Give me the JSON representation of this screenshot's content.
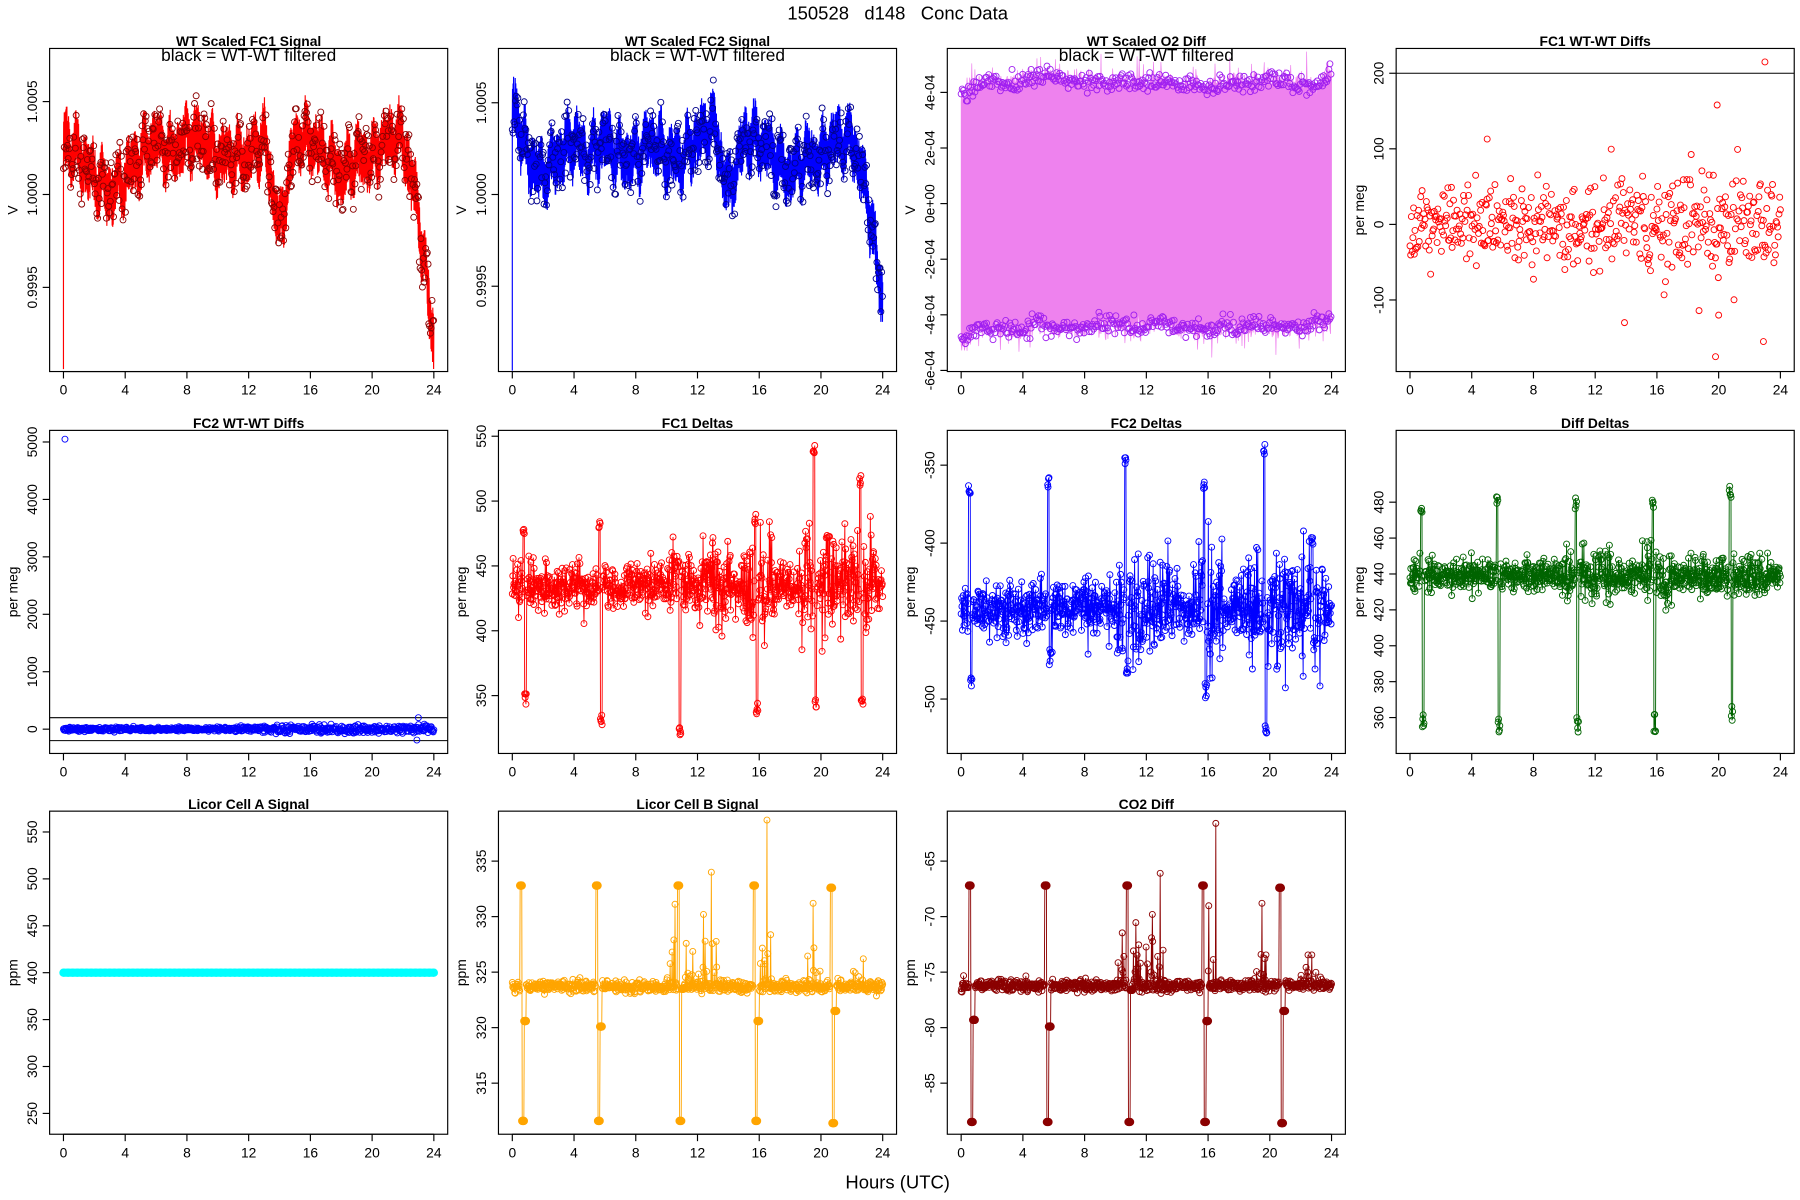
{
  "page": {
    "title": "150528   d148   Conc Data",
    "xlabel": "Hours (UTC)"
  },
  "chart_data": [
    {
      "type": "line",
      "style": "band",
      "title": "WT Scaled FC1 Signal",
      "subtitle": "black = WT-WT filtered",
      "ylabel": "V",
      "xlim": [
        0,
        24
      ],
      "ylim": [
        0.999047,
        1.000786
      ],
      "xticks": [
        0,
        4,
        8,
        12,
        16,
        20,
        24
      ],
      "yticks": [
        1.0005,
        1.0,
        0.9995
      ],
      "ytick_labels": [
        "1.0005",
        "1.0000",
        "0.9995"
      ],
      "color": "#FF0000",
      "point_color": "#8B0000",
      "baseline": [
        1.0003,
        1.0002,
        1.0001,
        1.0,
        1.0001,
        1.0002,
        1.0003,
        1.0002,
        1.0003,
        1.0003,
        1.0002,
        1.0002,
        1.0002,
        1.0003,
        0.9998,
        1.0003,
        1.0003,
        1.0002,
        1.0001,
        1.0002,
        1.0002,
        1.0003,
        1.0003,
        0.9999,
        0.9992
      ],
      "noise": 0.00016,
      "spike_start": {
        "x": 0,
        "y": 0.99906
      }
    },
    {
      "type": "line",
      "style": "band",
      "title": "WT Scaled FC2 Signal",
      "subtitle": "black = WT-WT filtered",
      "ylabel": "V",
      "xlim": [
        0,
        24
      ],
      "ylim": [
        0.999035,
        1.000796
      ],
      "xticks": [
        0,
        4,
        8,
        12,
        16,
        20,
        24
      ],
      "yticks": [
        1.0005,
        1.0,
        0.9995
      ],
      "ytick_labels": [
        "1.0005",
        "1.0000",
        "0.9995"
      ],
      "color": "#0000FF",
      "point_color": "#00008B",
      "baseline": [
        1.0005,
        1.0002,
        1.0001,
        1.0002,
        1.0003,
        1.0002,
        1.0003,
        1.0002,
        1.0002,
        1.0003,
        1.0002,
        1.0002,
        1.0003,
        1.0004,
        1.0,
        1.0003,
        1.0003,
        1.0002,
        1.0001,
        1.0002,
        1.0002,
        1.0003,
        1.0003,
        1.0,
        0.9994
      ],
      "noise": 0.00016,
      "spike_start": {
        "x": 0,
        "y": 0.99904
      }
    },
    {
      "type": "area",
      "style": "diffband",
      "title": "WT Scaled O2 Diff",
      "subtitle": "black = WT-WT filtered",
      "ylabel": "V",
      "xlim": [
        0,
        24
      ],
      "ylim": [
        -0.000604,
        0.000558
      ],
      "xticks": [
        0,
        4,
        8,
        12,
        16,
        20,
        24
      ],
      "yticks": [
        0.0004,
        0.0002,
        0,
        -0.0002,
        -0.0004,
        -0.0006
      ],
      "ytick_labels": [
        "4e-04",
        "2e-04",
        "0e+00",
        "-2e-04",
        "-4e-04",
        "-6e-04"
      ],
      "color": "#EE82EE",
      "point_color": "#A020F0",
      "upper": [
        0.00038,
        0.00043,
        0.00044,
        0.00043,
        0.00044,
        0.00045,
        0.00046,
        0.00043,
        0.00044,
        0.00043,
        0.00044,
        0.00044,
        0.00043,
        0.00044,
        0.00042,
        0.00043,
        0.00041,
        0.00043,
        0.00044,
        0.00043,
        0.00045,
        0.00044,
        0.00043,
        0.00042,
        0.00048
      ],
      "lower": [
        -0.0005,
        -0.00045,
        -0.00044,
        -0.00045,
        -0.00046,
        -0.00042,
        -0.00045,
        -0.00044,
        -0.00045,
        -0.00044,
        -0.00042,
        -0.00045,
        -0.00044,
        -0.00042,
        -0.00044,
        -0.00045,
        -0.00046,
        -0.00044,
        -0.00045,
        -0.00043,
        -0.00045,
        -0.00044,
        -0.00045,
        -0.00043,
        -0.00042
      ],
      "noise": 2e-05
    },
    {
      "type": "scatter",
      "style": "scatter",
      "title": "FC1 WT-WT Diffs",
      "ylabel": "per meg",
      "xlim": [
        0,
        24
      ],
      "ylim": [
        -194.7,
        232.8
      ],
      "xticks": [
        0,
        4,
        8,
        12,
        16,
        20,
        24
      ],
      "yticks": [
        200,
        100,
        0,
        -100
      ],
      "ytick_labels": [
        "200",
        "100",
        "0",
        "-100"
      ],
      "color": "#FF0000",
      "n": 520,
      "sd": [
        28,
        28,
        28,
        28,
        28,
        30,
        30,
        30,
        25,
        25,
        28,
        32,
        38,
        42,
        40,
        40,
        42,
        45,
        45,
        48,
        45,
        42,
        40,
        38,
        38
      ],
      "hlines": [
        200
      ],
      "outliers": [
        {
          "x": 23.0,
          "y": 215
        },
        {
          "x": 19.9,
          "y": 158
        },
        {
          "x": 5.0,
          "y": 113
        },
        {
          "x": 19.8,
          "y": -175
        },
        {
          "x": 22.9,
          "y": -155
        },
        {
          "x": 13.9,
          "y": -130
        },
        {
          "x": 20.0,
          "y": -120
        }
      ]
    },
    {
      "type": "scatter",
      "style": "scatter",
      "title": "FC2 WT-WT Diffs",
      "ylabel": "per meg",
      "xlim": [
        0,
        24
      ],
      "ylim": [
        -423,
        5202
      ],
      "xticks": [
        0,
        4,
        8,
        12,
        16,
        20,
        24
      ],
      "yticks": [
        0,
        1000,
        2000,
        3000,
        4000,
        5000
      ],
      "ytick_labels": [
        "0",
        "1000",
        "2000",
        "3000",
        "4000",
        "5000"
      ],
      "color": "#0000FF",
      "n": 700,
      "sd": [
        20,
        20,
        20,
        20,
        20,
        20,
        20,
        20,
        20,
        20,
        22,
        25,
        30,
        35,
        40,
        40,
        40,
        40,
        40,
        40,
        40,
        40,
        45,
        45,
        45
      ],
      "hlines": [
        200,
        -200
      ],
      "outliers": [
        {
          "x": 0.1,
          "y": 5050
        },
        {
          "x": 23.0,
          "y": 200
        },
        {
          "x": 22.9,
          "y": -190
        }
      ]
    },
    {
      "type": "line",
      "style": "spike",
      "title": "FC1 Deltas",
      "ylabel": "per meg",
      "xlim": [
        0,
        24
      ],
      "ylim": [
        305.4,
        554.5
      ],
      "xticks": [
        0,
        4,
        8,
        12,
        16,
        20,
        24
      ],
      "yticks": [
        350,
        400,
        450,
        500,
        550
      ],
      "ytick_labels": [
        "350",
        "400",
        "450",
        "500",
        "550"
      ],
      "color": "#FF0000",
      "base": 435,
      "noise": 9,
      "boost": [
        [
          10,
          12,
          1.6
        ],
        [
          12,
          14,
          1.8
        ],
        [
          15,
          17,
          2.2
        ],
        [
          18.5,
          23.5,
          2.2
        ]
      ],
      "events": [
        {
          "x": 0.8,
          "hi": 480,
          "lo": 342
        },
        {
          "x": 5.7,
          "hi": 485,
          "lo": 325
        },
        {
          "x": 10.8,
          "hi": 455,
          "lo": 318
        },
        {
          "x": 15.8,
          "hi": 490,
          "lo": 335
        },
        {
          "x": 19.6,
          "hi": 545,
          "lo": 338
        },
        {
          "x": 22.6,
          "hi": 520,
          "lo": 340
        }
      ]
    },
    {
      "type": "line",
      "style": "spike",
      "title": "FC2 Deltas",
      "ylabel": "per meg",
      "xlim": [
        0,
        24
      ],
      "ylim": [
        -534.9,
        -327.7
      ],
      "xticks": [
        0,
        4,
        8,
        12,
        16,
        20,
        24
      ],
      "yticks": [
        -350,
        -400,
        -450,
        -500
      ],
      "ytick_labels": [
        "-350",
        "-400",
        "-450",
        "-500"
      ],
      "color": "#0000FF",
      "base": -442,
      "noise": 9,
      "boost": [
        [
          10,
          14,
          1.8
        ],
        [
          15,
          17,
          2.2
        ],
        [
          18.5,
          23.5,
          2.2
        ]
      ],
      "events": [
        {
          "x": 0.6,
          "hi": -360,
          "lo": -492
        },
        {
          "x": 5.7,
          "hi": -358,
          "lo": -478
        },
        {
          "x": 10.7,
          "hi": -345,
          "lo": -485
        },
        {
          "x": 15.8,
          "hi": -358,
          "lo": -500
        },
        {
          "x": 19.7,
          "hi": -335,
          "lo": -527
        },
        {
          "x": 22.8,
          "hi": -395,
          "lo": -470
        }
      ]
    },
    {
      "type": "line",
      "style": "spike",
      "title": "Diff Deltas",
      "ylabel": "per meg",
      "xlim": [
        0,
        24
      ],
      "ylim": [
        340,
        520
      ],
      "xticks": [
        0,
        4,
        8,
        12,
        16,
        20,
        24
      ],
      "yticks": [
        360,
        380,
        400,
        420,
        440,
        460,
        480
      ],
      "ytick_labels": [
        "360",
        "380",
        "400",
        "420",
        "440",
        "460",
        "480"
      ],
      "color": "#006400",
      "base": 439,
      "noise": 4.5,
      "boost": [
        [
          10,
          13,
          1.5
        ],
        [
          15,
          17,
          1.8
        ],
        [
          20,
          23,
          1.4
        ]
      ],
      "events": [
        {
          "x": 0.8,
          "hi": 482,
          "lo": 352
        },
        {
          "x": 5.7,
          "hi": 483,
          "lo": 352
        },
        {
          "x": 10.8,
          "hi": 483,
          "lo": 350
        },
        {
          "x": 15.8,
          "hi": 483,
          "lo": 352
        },
        {
          "x": 20.8,
          "hi": 489,
          "lo": 358
        }
      ]
    },
    {
      "type": "line",
      "style": "flat",
      "title": "Licor Cell A Signal",
      "ylabel": "ppm",
      "xlim": [
        0,
        24
      ],
      "ylim": [
        227.8,
        572.2
      ],
      "xticks": [
        0,
        4,
        8,
        12,
        16,
        20,
        24
      ],
      "yticks": [
        250,
        300,
        350,
        400,
        450,
        500,
        550
      ],
      "ytick_labels": [
        "250",
        "300",
        "350",
        "400",
        "450",
        "500",
        "550"
      ],
      "color": "#00FFFF",
      "value": 400
    },
    {
      "type": "line",
      "style": "co2",
      "title": "Licor Cell B Signal",
      "ylabel": "ppm",
      "xlim": [
        0,
        24
      ],
      "ylim": [
        310.4,
        339.5
      ],
      "xticks": [
        0,
        4,
        8,
        12,
        16,
        20,
        24
      ],
      "yticks": [
        315,
        320,
        325,
        330,
        335
      ],
      "ytick_labels": [
        "315",
        "320",
        "325",
        "330",
        "335"
      ],
      "color": "#FFA500",
      "base": 323.7,
      "noise": 0.25,
      "boost": [
        [
          10,
          13.5,
          6
        ],
        [
          16,
          17,
          8
        ],
        [
          19,
          20,
          5
        ],
        [
          22,
          23,
          4
        ]
      ],
      "events": [
        {
          "x": 0.7,
          "hi": 332.8,
          "mid": 320.6,
          "lo": 311.6
        },
        {
          "x": 5.6,
          "hi": 332.8,
          "mid": 320.1,
          "lo": 311.6
        },
        {
          "x": 10.9,
          "hi": 332.8,
          "mid": 323.5,
          "lo": 311.6
        },
        {
          "x": 15.8,
          "hi": 332.8,
          "mid": 320.6,
          "lo": 311.6
        },
        {
          "x": 20.8,
          "hi": 332.6,
          "mid": 321.5,
          "lo": 311.4
        }
      ],
      "peaks": [
        {
          "x": 16.5,
          "y": 338.7
        },
        {
          "x": 19.5,
          "y": 331.2
        },
        {
          "x": 12.9,
          "y": 334.0
        },
        {
          "x": 12.4,
          "y": 330.2
        }
      ]
    },
    {
      "type": "line",
      "style": "co2",
      "title": "CO2 Diff",
      "ylabel": "ppm",
      "xlim": [
        0,
        24
      ],
      "ylim": [
        -89.6,
        -60.5
      ],
      "xticks": [
        0,
        4,
        8,
        12,
        16,
        20,
        24
      ],
      "yticks": [
        -65,
        -70,
        -75,
        -80,
        -85
      ],
      "ytick_labels": [
        "-65",
        "-70",
        "-75",
        "-80",
        "-85"
      ],
      "color": "#8B0000",
      "base": -76.2,
      "noise": 0.25,
      "boost": [
        [
          10,
          13.5,
          6
        ],
        [
          16,
          17,
          8
        ],
        [
          19,
          20,
          5
        ],
        [
          22,
          23,
          4
        ]
      ],
      "events": [
        {
          "x": 0.7,
          "hi": -67.2,
          "mid": -79.3,
          "lo": -88.5
        },
        {
          "x": 5.6,
          "hi": -67.2,
          "mid": -79.9,
          "lo": -88.5
        },
        {
          "x": 10.9,
          "hi": -67.2,
          "mid": -76.6,
          "lo": -88.5
        },
        {
          "x": 15.8,
          "hi": -67.2,
          "mid": -79.4,
          "lo": -88.5
        },
        {
          "x": 20.8,
          "hi": -67.4,
          "mid": -78.5,
          "lo": -88.6
        }
      ],
      "peaks": [
        {
          "x": 16.5,
          "y": -61.6
        },
        {
          "x": 19.5,
          "y": -68.8
        },
        {
          "x": 12.9,
          "y": -66.1
        },
        {
          "x": 12.4,
          "y": -69.8
        }
      ]
    }
  ]
}
